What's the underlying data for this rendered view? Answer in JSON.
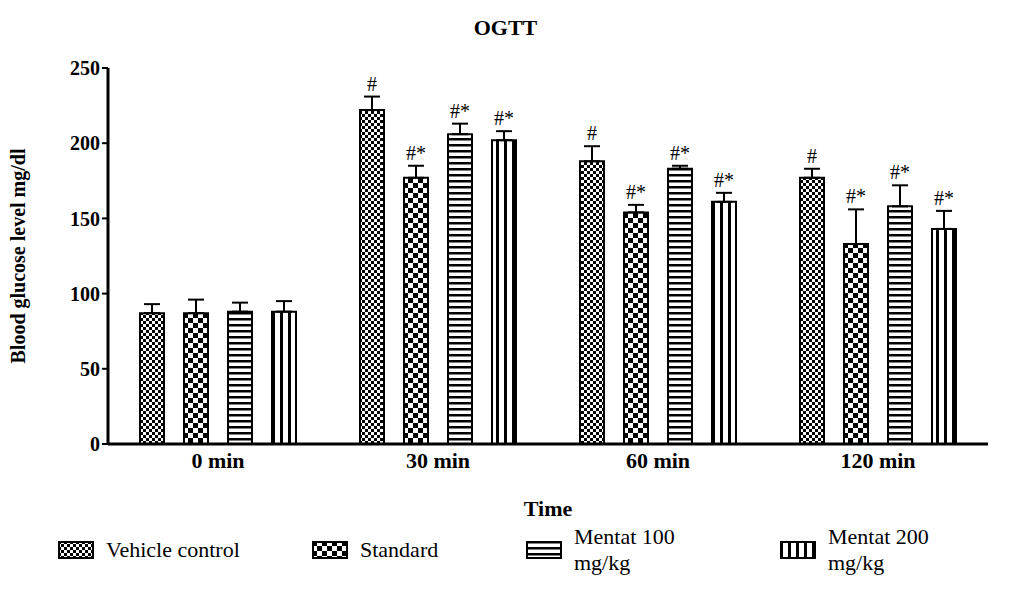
{
  "chart_data": {
    "type": "bar",
    "title": "OGTT",
    "x_label": "Time",
    "y_label": "Blood glucose level mg/dl",
    "categories": [
      "0 min",
      "30 min",
      "60 min",
      "120 min"
    ],
    "ylim": [
      0,
      250
    ],
    "yticks": [
      0,
      50,
      100,
      150,
      200,
      250
    ],
    "grid": false,
    "legend": "bottom",
    "series": [
      {
        "name": "Vehicle control",
        "color": "#000000",
        "values": [
          87,
          222,
          188,
          177
        ],
        "errors": [
          6,
          9,
          10,
          6
        ],
        "significance": [
          null,
          "#",
          "#",
          "#"
        ]
      },
      {
        "name": "Standard",
        "color": "#000000",
        "values": [
          87,
          177,
          154,
          133
        ],
        "errors": [
          9,
          8,
          5,
          23
        ],
        "significance": [
          null,
          "#*",
          "#*",
          "#*"
        ]
      },
      {
        "name": "Mentat 100 mg/kg",
        "color": "#000000",
        "values": [
          88,
          206,
          183,
          158
        ],
        "errors": [
          6,
          7,
          2,
          14
        ],
        "significance": [
          null,
          "#*",
          "#*",
          "#*"
        ]
      },
      {
        "name": "Mentat 200 mg/kg",
        "color": "#000000",
        "values": [
          88,
          202,
          161,
          143
        ],
        "errors": [
          7,
          6,
          6,
          12
        ],
        "significance": [
          null,
          "#*",
          "#*",
          "#*"
        ]
      }
    ]
  }
}
